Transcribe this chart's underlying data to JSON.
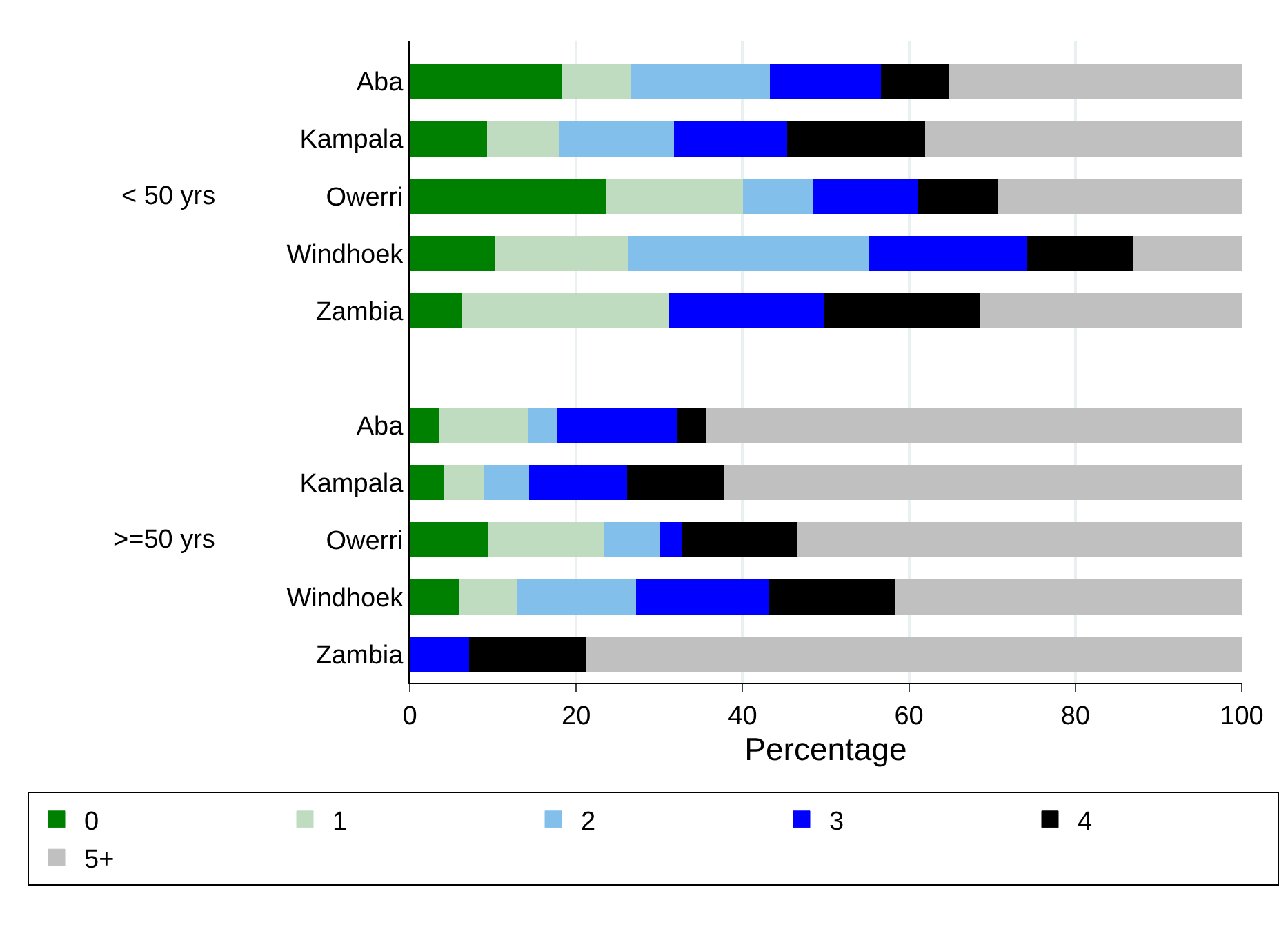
{
  "chart_data": {
    "type": "bar",
    "orientation": "horizontal",
    "stacked": true,
    "xlabel": "Percentage",
    "categories": [
      "Aba",
      "Kampala",
      "Owerri",
      "Windhoek",
      "Zambia",
      null,
      "Aba",
      "Kampala",
      "Owerri",
      "Windhoek",
      "Zambia"
    ],
    "annotations": [
      "< 50 yrs",
      ">=50 yrs"
    ],
    "series": [
      {
        "name": "0",
        "color": "#008000",
        "values": [
          18.3,
          9.3,
          23.6,
          10.3,
          6.3,
          null,
          3.6,
          4.1,
          9.5,
          5.9,
          0
        ]
      },
      {
        "name": "1",
        "color": "#c0dcc0",
        "values": [
          8.3,
          8.7,
          16.5,
          16.0,
          24.9,
          null,
          10.6,
          4.9,
          13.8,
          7.0,
          0
        ]
      },
      {
        "name": "2",
        "color": "#82bfea",
        "values": [
          16.7,
          13.8,
          8.4,
          28.9,
          0,
          null,
          3.6,
          5.4,
          6.8,
          14.3,
          0
        ]
      },
      {
        "name": "3",
        "color": "#0000ff",
        "values": [
          13.4,
          13.6,
          12.6,
          19.0,
          18.7,
          null,
          14.4,
          11.8,
          2.7,
          16.0,
          7.2
        ]
      },
      {
        "name": "4",
        "color": "#000000",
        "values": [
          8.2,
          16.6,
          9.7,
          12.7,
          18.7,
          null,
          3.5,
          11.6,
          13.8,
          15.1,
          14.1
        ]
      },
      {
        "name": "5+",
        "color": "#c0c0c0",
        "values": [
          35.1,
          38.0,
          29.2,
          13.1,
          31.4,
          null,
          64.3,
          62.2,
          53.4,
          41.7,
          78.7
        ]
      }
    ],
    "xlim": [
      0,
      100
    ],
    "xticks": [
      0,
      20,
      40,
      60,
      80,
      100
    ],
    "grid": "x",
    "legend": "bottom"
  }
}
